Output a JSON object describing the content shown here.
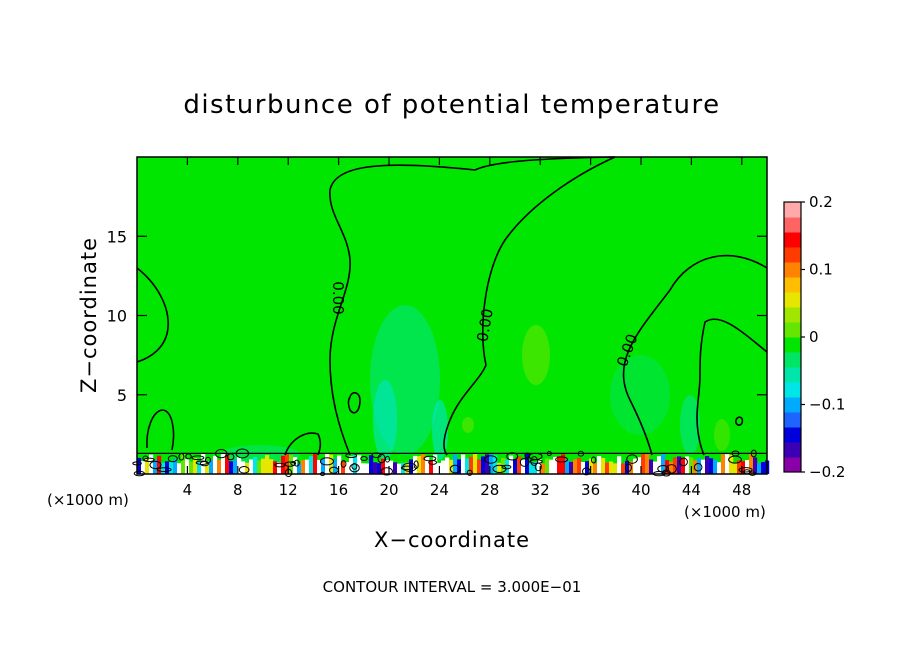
{
  "chart_data": {
    "type": "heatmap",
    "title": "disturbunce of potential temperature",
    "xlabel": "X−coordinate",
    "ylabel": "Z−coordinate",
    "x_unit_left": "(×1000 m)",
    "x_unit_right": "(×1000 m)",
    "xlim": [
      0,
      50
    ],
    "ylim": [
      0,
      20
    ],
    "x_ticks": [
      4,
      8,
      12,
      16,
      20,
      24,
      28,
      32,
      36,
      40,
      44,
      48
    ],
    "y_ticks": [
      5,
      10,
      15
    ],
    "footer": "CONTOUR INTERVAL = 3.000E−01",
    "contour_label": "0.00",
    "colorbar": {
      "range": [
        -0.2,
        0.2
      ],
      "tick_values": [
        0.2,
        0.1,
        0,
        -0.1,
        -0.2
      ],
      "tick_labels": [
        "0.2",
        "0.1",
        "0",
        "−0.1",
        "−0.2"
      ],
      "colors": [
        "#8a00a8",
        "#3c00b4",
        "#0000dc",
        "#1e64ff",
        "#00aaff",
        "#00e6e6",
        "#00e6aa",
        "#00e664",
        "#00e600",
        "#64e600",
        "#a0e600",
        "#e6e600",
        "#ffbe00",
        "#ff8200",
        "#ff3c00",
        "#ff0000",
        "#ff6464",
        "#ffaaaa"
      ]
    },
    "background_color": "#00e600",
    "grid": false
  }
}
